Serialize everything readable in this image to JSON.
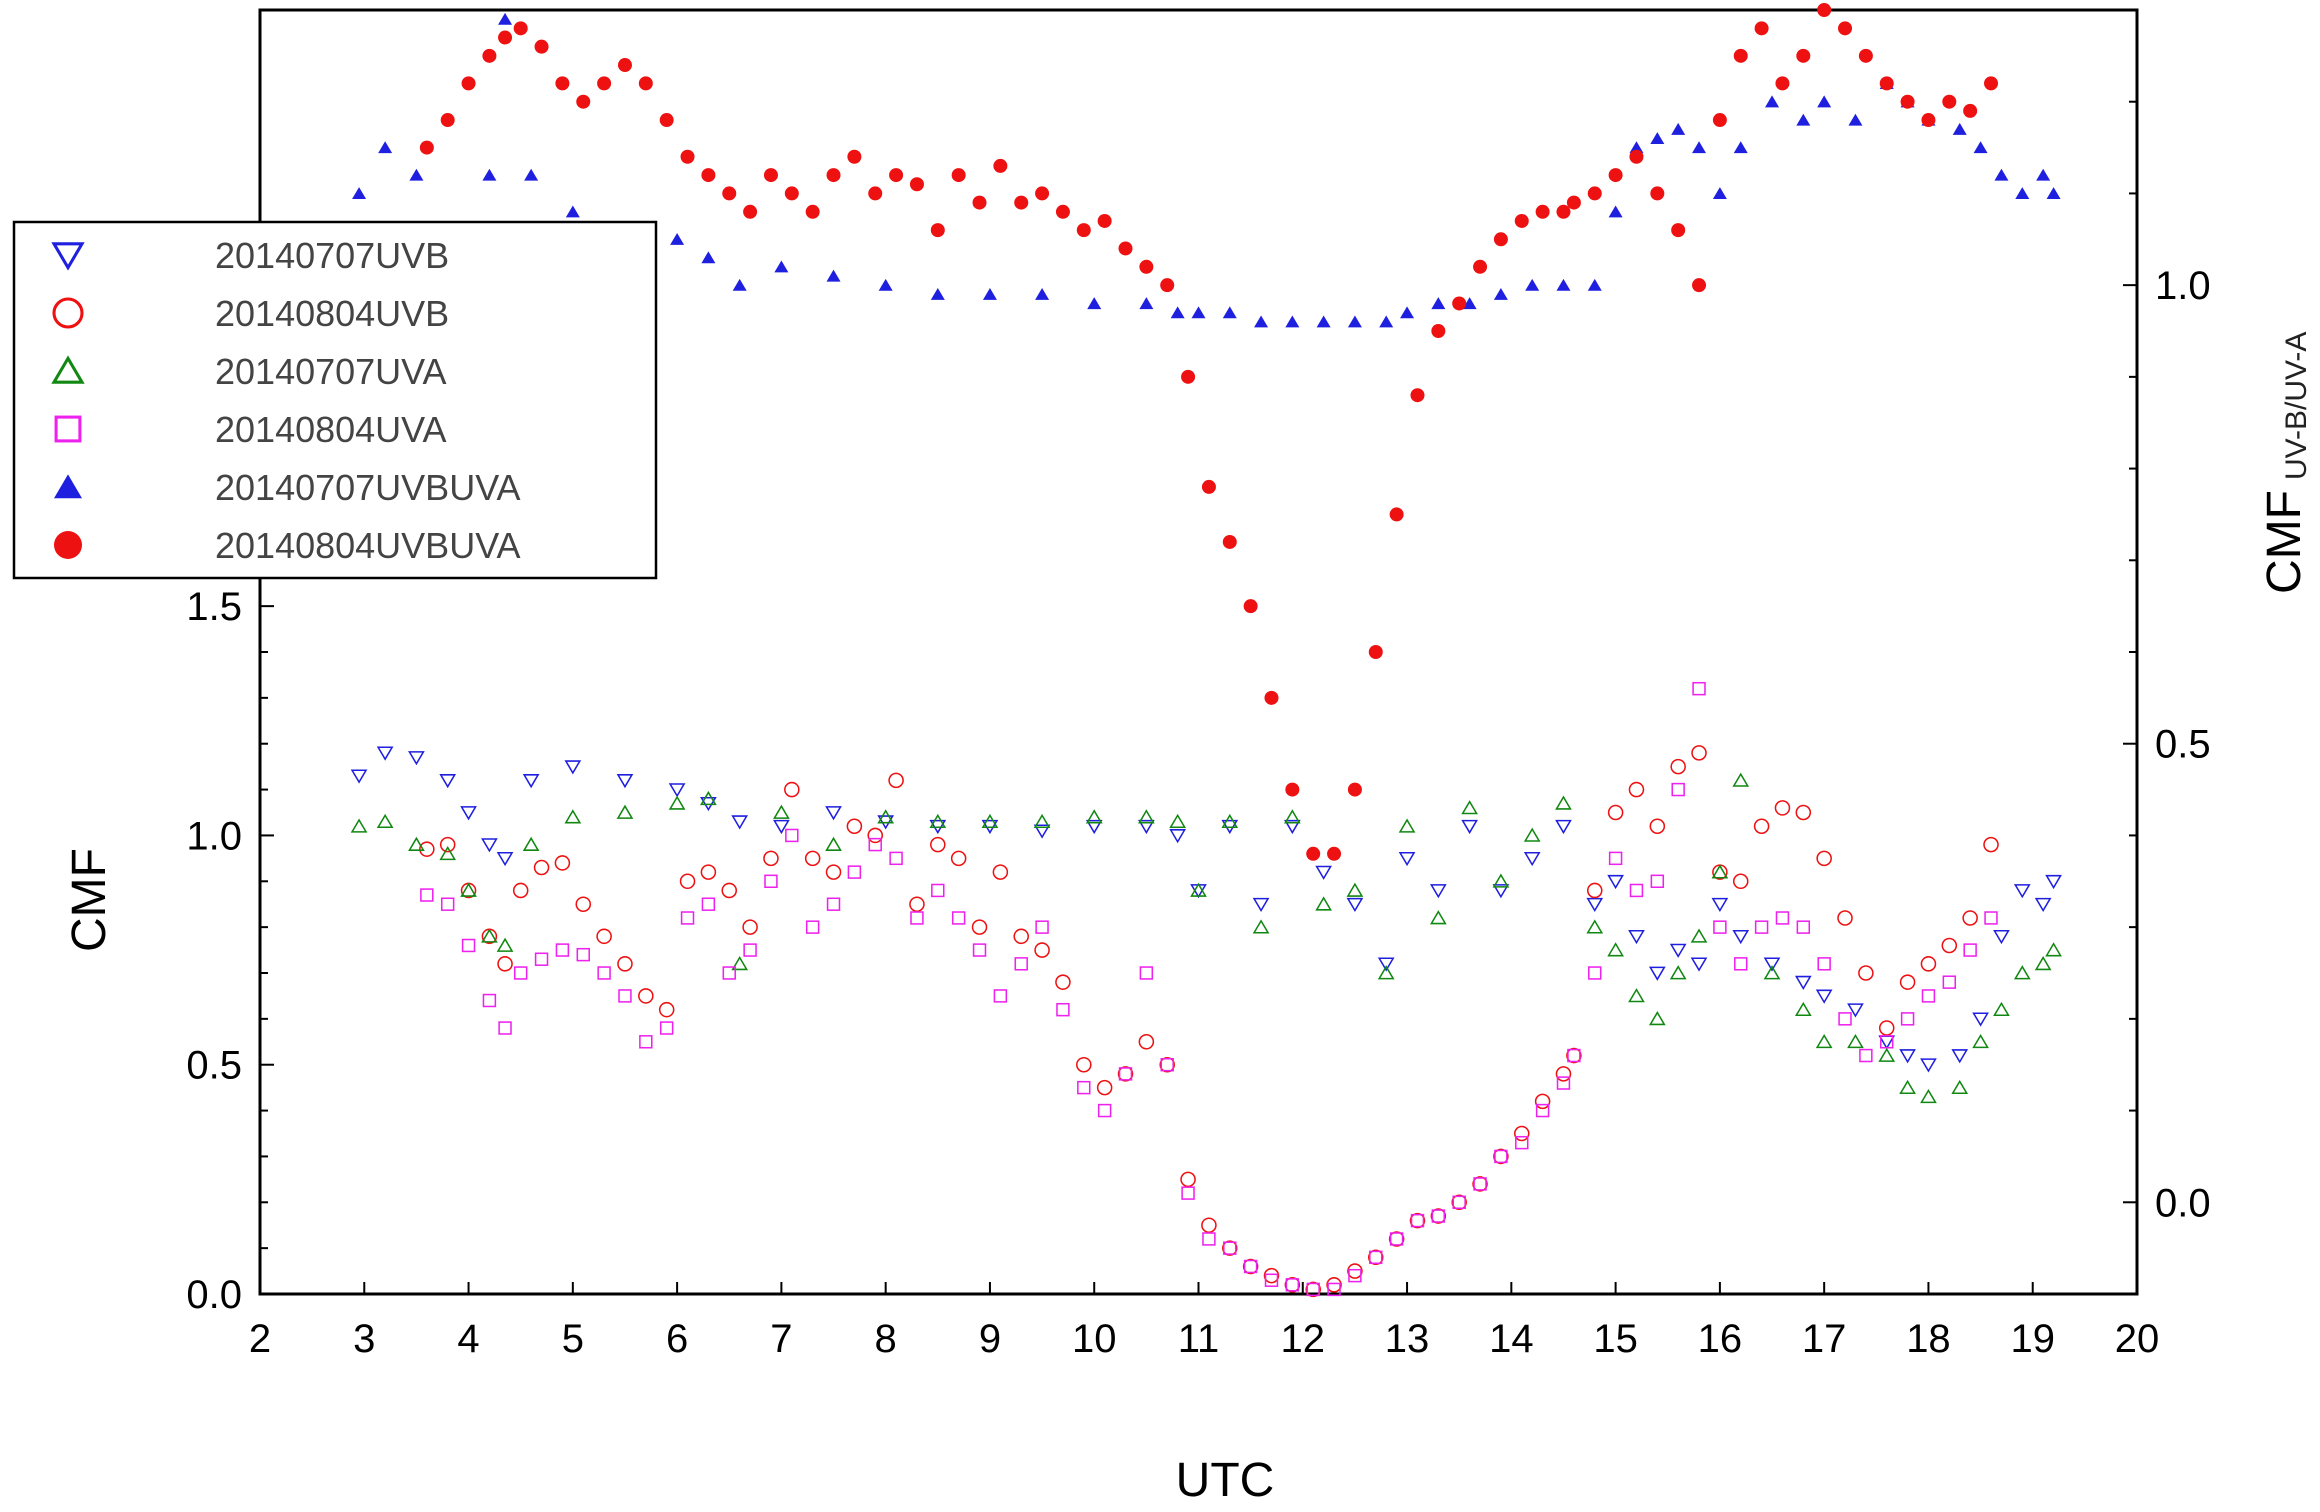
{
  "chart_data": {
    "type": "scatter",
    "title": "",
    "xlabel": "UTC",
    "xlim": [
      2,
      20
    ],
    "xticks": [
      "2",
      "3",
      "4",
      "5",
      "6",
      "7",
      "8",
      "9",
      "10",
      "11",
      "12",
      "13",
      "14",
      "15",
      "16",
      "17",
      "18",
      "19",
      "20"
    ],
    "left_axis": {
      "label": "CMF",
      "ylim": [
        0,
        2.8
      ],
      "ticks": [
        "0.0",
        "0.5",
        "1.0",
        "1.5"
      ]
    },
    "right_axis": {
      "label": "CMF",
      "label_subscript": "UV-B/UV-A",
      "ylim": [
        -0.1,
        1.3
      ],
      "ticks": [
        "0.0",
        "0.5",
        "1.0"
      ]
    },
    "legend_position": "upper-left",
    "series": [
      {
        "name": "20140707UVB",
        "axis": "left",
        "marker": "triangle-down-open",
        "color": "#1f1fe0",
        "x": [
          2.95,
          3.2,
          3.5,
          3.8,
          4.0,
          4.2,
          4.35,
          4.6,
          5.0,
          5.5,
          6.0,
          6.3,
          6.6,
          7.0,
          7.5,
          8.0,
          8.5,
          9.0,
          9.5,
          10.0,
          10.5,
          10.8,
          11.0,
          11.3,
          11.6,
          11.9,
          12.2,
          12.5,
          12.8,
          13.0,
          13.3,
          13.6,
          13.9,
          14.2,
          14.5,
          14.8,
          15.0,
          15.2,
          15.4,
          15.6,
          15.8,
          16.0,
          16.2,
          16.5,
          16.8,
          17.0,
          17.3,
          17.6,
          17.8,
          18.0,
          18.3,
          18.5,
          18.7,
          18.9,
          19.1,
          19.2
        ],
        "y": [
          1.13,
          1.18,
          1.17,
          1.12,
          1.05,
          0.98,
          0.95,
          1.12,
          1.15,
          1.12,
          1.1,
          1.07,
          1.03,
          1.02,
          1.05,
          1.03,
          1.02,
          1.02,
          1.01,
          1.02,
          1.02,
          1.0,
          0.88,
          1.02,
          0.85,
          1.02,
          0.92,
          0.85,
          0.72,
          0.95,
          0.88,
          1.02,
          0.88,
          0.95,
          1.02,
          0.85,
          0.9,
          0.78,
          0.7,
          0.75,
          0.72,
          0.85,
          0.78,
          0.72,
          0.68,
          0.65,
          0.62,
          0.55,
          0.52,
          0.5,
          0.52,
          0.6,
          0.78,
          0.88,
          0.85,
          0.9
        ]
      },
      {
        "name": "20140804UVB",
        "axis": "left",
        "marker": "circle-open",
        "color": "#ee1111",
        "x": [
          3.6,
          3.8,
          4.0,
          4.2,
          4.35,
          4.5,
          4.7,
          4.9,
          5.1,
          5.3,
          5.5,
          5.7,
          5.9,
          6.1,
          6.3,
          6.5,
          6.7,
          6.9,
          7.1,
          7.3,
          7.5,
          7.7,
          7.9,
          8.1,
          8.3,
          8.5,
          8.7,
          8.9,
          9.1,
          9.3,
          9.5,
          9.7,
          9.9,
          10.1,
          10.3,
          10.5,
          10.7,
          10.9,
          11.1,
          11.3,
          11.5,
          11.7,
          11.9,
          12.1,
          12.3,
          12.5,
          12.7,
          12.9,
          13.1,
          13.3,
          13.5,
          13.7,
          13.9,
          14.1,
          14.3,
          14.5,
          14.6,
          14.8,
          15.0,
          15.2,
          15.4,
          15.6,
          15.8,
          16.0,
          16.2,
          16.4,
          16.6,
          16.8,
          17.0,
          17.2,
          17.4,
          17.6,
          17.8,
          18.0,
          18.2,
          18.4,
          18.6
        ],
        "y": [
          0.97,
          0.98,
          0.88,
          0.78,
          0.72,
          0.88,
          0.93,
          0.94,
          0.85,
          0.78,
          0.72,
          0.65,
          0.62,
          0.9,
          0.92,
          0.88,
          0.8,
          0.95,
          1.1,
          0.95,
          0.92,
          1.02,
          1.0,
          1.12,
          0.85,
          0.98,
          0.95,
          0.8,
          0.92,
          0.78,
          0.75,
          0.68,
          0.5,
          0.45,
          0.48,
          0.55,
          0.5,
          0.25,
          0.15,
          0.1,
          0.06,
          0.04,
          0.02,
          0.01,
          0.02,
          0.05,
          0.08,
          0.12,
          0.16,
          0.17,
          0.2,
          0.24,
          0.3,
          0.35,
          0.42,
          0.48,
          0.52,
          0.88,
          1.05,
          1.1,
          1.02,
          1.15,
          1.18,
          0.92,
          0.9,
          1.02,
          1.06,
          1.05,
          0.95,
          0.82,
          0.7,
          0.58,
          0.68,
          0.72,
          0.76,
          0.82,
          0.98
        ]
      },
      {
        "name": "20140707UVA",
        "axis": "left",
        "marker": "triangle-up-open",
        "color": "#118811",
        "x": [
          2.95,
          3.2,
          3.5,
          3.8,
          4.0,
          4.2,
          4.35,
          4.6,
          5.0,
          5.5,
          6.0,
          6.3,
          6.6,
          7.0,
          7.5,
          8.0,
          8.5,
          9.0,
          9.5,
          10.0,
          10.5,
          10.8,
          11.0,
          11.3,
          11.6,
          11.9,
          12.2,
          12.5,
          12.8,
          13.0,
          13.3,
          13.6,
          13.9,
          14.2,
          14.5,
          14.8,
          15.0,
          15.2,
          15.4,
          15.6,
          15.8,
          16.0,
          16.2,
          16.5,
          16.8,
          17.0,
          17.3,
          17.6,
          17.8,
          18.0,
          18.3,
          18.5,
          18.7,
          18.9,
          19.1,
          19.2
        ],
        "y": [
          1.02,
          1.03,
          0.98,
          0.96,
          0.88,
          0.78,
          0.76,
          0.98,
          1.04,
          1.05,
          1.07,
          1.08,
          0.72,
          1.05,
          0.98,
          1.04,
          1.03,
          1.03,
          1.03,
          1.04,
          1.04,
          1.03,
          0.88,
          1.03,
          0.8,
          1.04,
          0.85,
          0.88,
          0.7,
          1.02,
          0.82,
          1.06,
          0.9,
          1.0,
          1.07,
          0.8,
          0.75,
          0.65,
          0.6,
          0.7,
          0.78,
          0.92,
          1.12,
          0.7,
          0.62,
          0.55,
          0.55,
          0.52,
          0.45,
          0.43,
          0.45,
          0.55,
          0.62,
          0.7,
          0.72,
          0.75
        ]
      },
      {
        "name": "20140804UVA",
        "axis": "left",
        "marker": "square-open",
        "color": "#ee22ee",
        "x": [
          3.6,
          3.8,
          4.0,
          4.2,
          4.35,
          4.5,
          4.7,
          4.9,
          5.1,
          5.3,
          5.5,
          5.7,
          5.9,
          6.1,
          6.3,
          6.5,
          6.7,
          6.9,
          7.1,
          7.3,
          7.5,
          7.7,
          7.9,
          8.1,
          8.3,
          8.5,
          8.7,
          8.9,
          9.1,
          9.3,
          9.5,
          9.7,
          9.9,
          10.1,
          10.3,
          10.5,
          10.7,
          10.9,
          11.1,
          11.3,
          11.5,
          11.7,
          11.9,
          12.1,
          12.3,
          12.5,
          12.7,
          12.9,
          13.1,
          13.3,
          13.5,
          13.7,
          13.9,
          14.1,
          14.3,
          14.5,
          14.6,
          14.8,
          15.0,
          15.2,
          15.4,
          15.6,
          15.8,
          16.0,
          16.2,
          16.4,
          16.6,
          16.8,
          17.0,
          17.2,
          17.4,
          17.6,
          17.8,
          18.0,
          18.2,
          18.4,
          18.6
        ],
        "y": [
          0.87,
          0.85,
          0.76,
          0.64,
          0.58,
          0.7,
          0.73,
          0.75,
          0.74,
          0.7,
          0.65,
          0.55,
          0.58,
          0.82,
          0.85,
          0.7,
          0.75,
          0.9,
          1.0,
          0.8,
          0.85,
          0.92,
          0.98,
          0.95,
          0.82,
          0.88,
          0.82,
          0.75,
          0.65,
          0.72,
          0.8,
          0.62,
          0.45,
          0.4,
          0.48,
          0.7,
          0.5,
          0.22,
          0.12,
          0.1,
          0.06,
          0.03,
          0.02,
          0.01,
          0.01,
          0.04,
          0.08,
          0.12,
          0.16,
          0.17,
          0.2,
          0.24,
          0.3,
          0.33,
          0.4,
          0.46,
          0.52,
          0.7,
          0.95,
          0.88,
          0.9,
          1.1,
          1.32,
          0.8,
          0.72,
          0.8,
          0.82,
          0.8,
          0.72,
          0.6,
          0.52,
          0.55,
          0.6,
          0.65,
          0.68,
          0.75,
          0.82
        ]
      },
      {
        "name": "20140707UVBUVA",
        "axis": "right",
        "marker": "triangle-up-filled",
        "color": "#1f1fe0",
        "x": [
          2.95,
          3.2,
          3.5,
          3.8,
          4.0,
          4.2,
          4.35,
          4.6,
          5.0,
          5.5,
          6.0,
          6.3,
          6.6,
          7.0,
          7.5,
          8.0,
          8.5,
          9.0,
          9.5,
          10.0,
          10.5,
          10.8,
          11.0,
          11.3,
          11.6,
          11.9,
          12.2,
          12.5,
          12.8,
          13.0,
          13.3,
          13.6,
          13.9,
          14.2,
          14.5,
          14.8,
          15.0,
          15.2,
          15.4,
          15.6,
          15.8,
          16.0,
          16.2,
          16.5,
          16.8,
          17.0,
          17.3,
          17.6,
          17.8,
          18.0,
          18.3,
          18.5,
          18.7,
          18.9,
          19.1,
          19.2
        ],
        "y": [
          1.1,
          1.15,
          1.12,
          1.06,
          1.05,
          1.12,
          1.29,
          1.12,
          1.08,
          1.06,
          1.05,
          1.03,
          1.0,
          1.02,
          1.01,
          1.0,
          0.99,
          0.99,
          0.99,
          0.98,
          0.98,
          0.97,
          0.97,
          0.97,
          0.96,
          0.96,
          0.96,
          0.96,
          0.96,
          0.97,
          0.98,
          0.98,
          0.99,
          1.0,
          1.0,
          1.0,
          1.08,
          1.15,
          1.16,
          1.17,
          1.15,
          1.1,
          1.15,
          1.2,
          1.18,
          1.2,
          1.18,
          1.22,
          1.2,
          1.18,
          1.17,
          1.15,
          1.12,
          1.1,
          1.12,
          1.1
        ]
      },
      {
        "name": "20140804UVBUVA",
        "axis": "right",
        "marker": "circle-filled",
        "color": "#ee1111",
        "x": [
          3.6,
          3.8,
          4.0,
          4.2,
          4.35,
          4.5,
          4.7,
          4.9,
          5.1,
          5.3,
          5.5,
          5.7,
          5.9,
          6.1,
          6.3,
          6.5,
          6.7,
          6.9,
          7.1,
          7.3,
          7.5,
          7.7,
          7.9,
          8.1,
          8.3,
          8.5,
          8.7,
          8.9,
          9.1,
          9.3,
          9.5,
          9.7,
          9.9,
          10.1,
          10.3,
          10.5,
          10.7,
          10.9,
          11.1,
          11.3,
          11.5,
          11.7,
          11.9,
          12.1,
          12.3,
          12.5,
          12.7,
          12.9,
          13.1,
          13.3,
          13.5,
          13.7,
          13.9,
          14.1,
          14.3,
          14.5,
          14.6,
          14.8,
          15.0,
          15.2,
          15.4,
          15.6,
          15.8,
          16.0,
          16.2,
          16.4,
          16.6,
          16.8,
          17.0,
          17.2,
          17.4,
          17.6,
          17.8,
          18.0,
          18.2,
          18.4,
          18.6
        ],
        "y": [
          1.15,
          1.18,
          1.22,
          1.25,
          1.27,
          1.28,
          1.26,
          1.22,
          1.2,
          1.22,
          1.24,
          1.22,
          1.18,
          1.14,
          1.12,
          1.1,
          1.08,
          1.12,
          1.1,
          1.08,
          1.12,
          1.14,
          1.1,
          1.12,
          1.11,
          1.06,
          1.12,
          1.09,
          1.13,
          1.09,
          1.1,
          1.08,
          1.06,
          1.07,
          1.04,
          1.02,
          1.0,
          0.9,
          0.78,
          0.72,
          0.65,
          0.55,
          0.45,
          0.38,
          0.38,
          0.45,
          0.6,
          0.75,
          0.88,
          0.95,
          0.98,
          1.02,
          1.05,
          1.07,
          1.08,
          1.08,
          1.09,
          1.1,
          1.12,
          1.14,
          1.1,
          1.06,
          1.0,
          1.18,
          1.25,
          1.28,
          1.22,
          1.25,
          1.3,
          1.28,
          1.25,
          1.22,
          1.2,
          1.18,
          1.2,
          1.19,
          1.22
        ]
      }
    ]
  }
}
